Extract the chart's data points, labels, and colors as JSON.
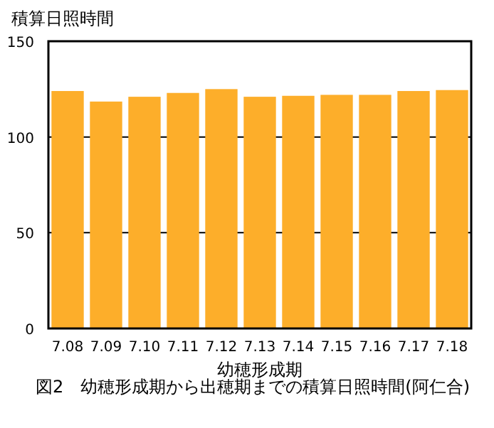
{
  "chart_data": {
    "type": "bar",
    "title": "図2　幼穂形成期から出穂期までの積算日照時間(阿仁合)",
    "xlabel": "幼穂形成期",
    "ylabel": "積算日照時間",
    "categories": [
      "7.08",
      "7.09",
      "7.10",
      "7.11",
      "7.12",
      "7.13",
      "7.14",
      "7.15",
      "7.16",
      "7.17",
      "7.18"
    ],
    "values": [
      124,
      118.5,
      121,
      123,
      125,
      121,
      121.5,
      122,
      122,
      124,
      124.5
    ],
    "color": "#fdae2a",
    "ylim": [
      0,
      150
    ],
    "yticks": [
      0,
      50,
      100,
      150
    ],
    "grid": "y"
  }
}
